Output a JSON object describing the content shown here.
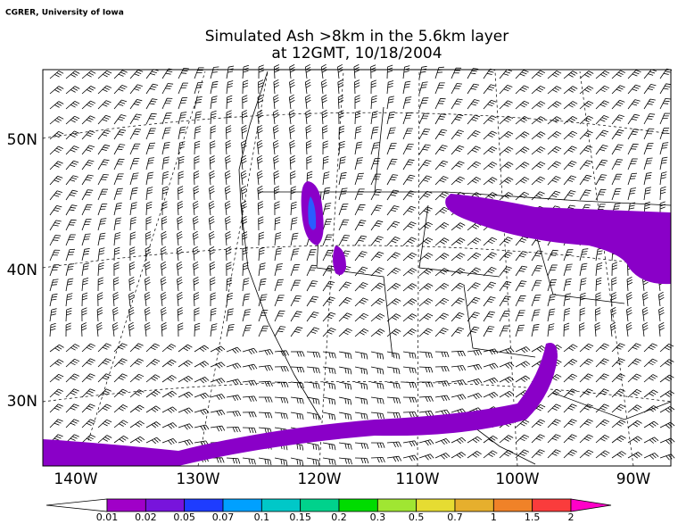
{
  "credit": "CGRER, University of Iowa",
  "title": [
    "Simulated Ash  >8km in the 5.6km layer",
    "at 12GMT, 10/18/2004"
  ],
  "lat_labels": [
    "50N",
    "40N",
    "30N"
  ],
  "lon_labels": [
    "140W",
    "130W",
    "120W",
    "110W",
    "100W",
    "90W"
  ],
  "colorbar": {
    "labels": [
      "0.01",
      "0.02",
      "0.05",
      "0.07",
      "0.1",
      "0.15",
      "0.2",
      "0.3",
      "0.5",
      "0.7",
      "1",
      "1.5",
      "2"
    ],
    "colors": [
      "#a000c8",
      "#7814dc",
      "#1e3cff",
      "#00a0ff",
      "#00c8c8",
      "#00d28c",
      "#00dc00",
      "#a0e632",
      "#e6dc32",
      "#e6af2d",
      "#f08228",
      "#fa3c3c"
    ]
  }
}
